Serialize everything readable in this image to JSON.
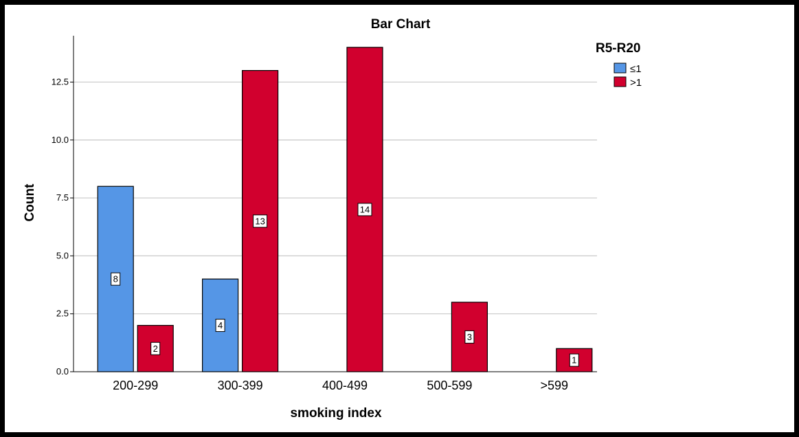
{
  "chart_data": {
    "type": "bar",
    "title": "Bar Chart",
    "xlabel": "smoking index",
    "ylabel": "Count",
    "categories": [
      "200-299",
      "300-399",
      "400-499",
      "500-599",
      ">599"
    ],
    "series": [
      {
        "name": "≤1",
        "color": "#5596E6",
        "values": [
          8,
          4,
          null,
          null,
          null
        ]
      },
      {
        "name": ">1",
        "color": "#D1002E",
        "values": [
          2,
          13,
          14,
          3,
          1
        ]
      }
    ],
    "ylim": [
      0,
      14.5
    ],
    "yticks": [
      "0.0",
      "2.5",
      "5.0",
      "7.5",
      "10.0",
      "12.5"
    ],
    "grid": true,
    "legend": {
      "title": "R5-R20",
      "position": "top-right"
    }
  }
}
